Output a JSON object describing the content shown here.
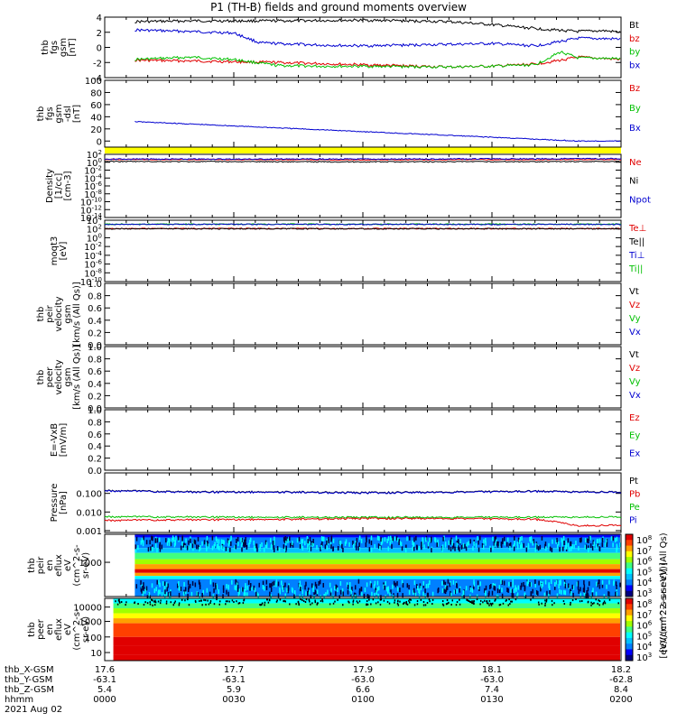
{
  "title": "P1 (TH-B) fields and ground moments overview",
  "chart_data": [
    {
      "id": "fgs_gsm",
      "type": "line",
      "ylabel_lines": [
        "thb",
        "fgs",
        "gsm",
        "[nT]"
      ],
      "ylim": [
        -4,
        4
      ],
      "yticks": [
        "4",
        "2",
        "0",
        "-2",
        "-4"
      ],
      "legend": [
        {
          "label": "Bt",
          "color": "#000000"
        },
        {
          "label": "bz",
          "color": "#e00000"
        },
        {
          "label": "by",
          "color": "#00c000"
        },
        {
          "label": "bx",
          "color": "#0000d0"
        }
      ],
      "series": [
        {
          "name": "Bt",
          "color": "#000000",
          "x": [
            17.635,
            17.7,
            17.8,
            17.9,
            18.0,
            18.05,
            18.1,
            18.15,
            18.18,
            18.2
          ],
          "values": [
            3.4,
            3.5,
            3.5,
            3.6,
            3.4,
            3.0,
            2.5,
            2.1,
            2.2,
            2.0
          ]
        },
        {
          "name": "bz",
          "color": "#e00000",
          "x": [
            17.635,
            17.7,
            17.8,
            17.9,
            18.0,
            18.05,
            18.1,
            18.13,
            18.15,
            18.2
          ],
          "values": [
            -1.7,
            -1.8,
            -2.0,
            -2.3,
            -2.6,
            -2.5,
            -2.2,
            -1.7,
            -1.3,
            -1.6
          ]
        },
        {
          "name": "by",
          "color": "#00c000",
          "x": [
            17.635,
            17.7,
            17.75,
            17.8,
            17.85,
            17.9,
            18.0,
            18.05,
            18.1,
            18.13,
            18.15,
            18.2
          ],
          "values": [
            -1.6,
            -1.3,
            -1.6,
            -2.4,
            -2.5,
            -2.5,
            -2.6,
            -2.5,
            -2.3,
            -0.6,
            -1.4,
            -1.5
          ]
        },
        {
          "name": "bx",
          "color": "#0000d0",
          "x": [
            17.635,
            17.7,
            17.75,
            17.78,
            17.8,
            17.85,
            17.9,
            17.95,
            18.0,
            18.05,
            18.1,
            18.15,
            18.2
          ],
          "values": [
            2.3,
            2.1,
            1.9,
            0.6,
            0.5,
            0.3,
            0.2,
            0.3,
            0.4,
            0.5,
            0.2,
            1.2,
            1.1
          ]
        }
      ]
    },
    {
      "id": "fgs_gsm_dsl",
      "type": "line",
      "ylabel_lines": [
        "thb",
        "fgs",
        "gsm",
        "-dsl",
        "[nT]"
      ],
      "ylim": [
        -10,
        100
      ],
      "yticks": [
        "100",
        "80",
        "60",
        "40",
        "20",
        "0"
      ],
      "legend": [
        {
          "label": "Bz",
          "color": "#e00000"
        },
        {
          "label": "By",
          "color": "#00c000"
        },
        {
          "label": "Bx",
          "color": "#0000d0"
        }
      ],
      "series": [
        {
          "name": "Bx",
          "color": "#0000d0",
          "x": [
            17.635,
            18.15,
            18.2
          ],
          "values": [
            32,
            0,
            0
          ]
        }
      ]
    },
    {
      "id": "density",
      "type": "line",
      "log": true,
      "ylabel_lines": [
        "Density",
        "[1/cc]",
        "[cm-3]"
      ],
      "ylim_exp": [
        -14,
        2
      ],
      "yticks": [
        "10^2",
        "10^0",
        "10^-2",
        "10^-4",
        "10^-6",
        "10^-8",
        "10^-10",
        "10^-12",
        "10^-14"
      ],
      "legend": [
        {
          "label": "Ne",
          "color": "#e00000"
        },
        {
          "label": "Ni",
          "color": "#000000"
        },
        {
          "label": "Npot",
          "color": "#0000d0"
        }
      ],
      "series": [
        {
          "name": "Ne",
          "color": "#e00000",
          "x": [
            17.6,
            17.9,
            18.2
          ],
          "exp": [
            0.7,
            0.6,
            0.7
          ]
        },
        {
          "name": "Npot",
          "color": "#0000d0",
          "x": [
            17.6,
            17.9,
            18.2
          ],
          "exp": [
            0.8,
            0.8,
            0.9
          ]
        },
        {
          "name": "Ni",
          "color": "#000000",
          "x": [
            17.6,
            17.9,
            18.2
          ],
          "exp": [
            0.2,
            0.1,
            0.2
          ]
        }
      ]
    },
    {
      "id": "temperature",
      "type": "line",
      "log": true,
      "ylabel_lines": [
        "moqt3",
        "[eV]"
      ],
      "ylim_exp": [
        -10,
        4
      ],
      "yticks": [
        "10^4",
        "10^2",
        "10^0",
        "10^-2",
        "10^-4",
        "10^-6",
        "10^-8",
        "10^-10"
      ],
      "legend": [
        {
          "label": "Te⊥",
          "color": "#e00000"
        },
        {
          "label": "Te||",
          "color": "#000000"
        },
        {
          "label": "Ti⊥",
          "color": "#0000d0"
        },
        {
          "label": "Ti||",
          "color": "#00c000"
        }
      ],
      "series": [
        {
          "name": "Ti||",
          "color": "#00c000",
          "x": [
            17.6,
            18.2
          ],
          "exp": [
            3.1,
            3.1
          ]
        },
        {
          "name": "Ti⊥",
          "color": "#0000d0",
          "x": [
            17.6,
            18.2
          ],
          "exp": [
            3.05,
            3.05
          ]
        },
        {
          "name": "Te⊥",
          "color": "#e00000",
          "x": [
            17.6,
            18.2
          ],
          "exp": [
            2.1,
            2.1
          ]
        },
        {
          "name": "Te||",
          "color": "#000000",
          "x": [
            17.6,
            18.2
          ],
          "exp": [
            2.05,
            2.05
          ]
        }
      ]
    },
    {
      "id": "peir_velocity",
      "type": "line",
      "ylabel_lines": [
        "thb",
        "peir",
        "velocity",
        "gsm",
        "[km/s (All Qs)]"
      ],
      "ylim": [
        0,
        1
      ],
      "yticks": [
        "1.0",
        "0.8",
        "0.6",
        "0.4",
        "0.2",
        "0.0"
      ],
      "legend": [
        {
          "label": "Vt",
          "color": "#000000"
        },
        {
          "label": "Vz",
          "color": "#e00000"
        },
        {
          "label": "Vy",
          "color": "#00c000"
        },
        {
          "label": "Vx",
          "color": "#0000d0"
        }
      ],
      "series": []
    },
    {
      "id": "peer_velocity",
      "type": "line",
      "ylabel_lines": [
        "thb",
        "peer",
        "velocity",
        "gsm",
        "[km/s (All Qs)]"
      ],
      "ylim": [
        0,
        1
      ],
      "yticks": [
        "1.0",
        "0.8",
        "0.6",
        "0.4",
        "0.2",
        "0.0"
      ],
      "legend": [
        {
          "label": "Vt",
          "color": "#000000"
        },
        {
          "label": "Vz",
          "color": "#e00000"
        },
        {
          "label": "Vy",
          "color": "#00c000"
        },
        {
          "label": "Vx",
          "color": "#0000d0"
        }
      ],
      "series": []
    },
    {
      "id": "efield",
      "type": "line",
      "ylabel_lines": [
        "E=-VxB",
        "[mV/m]"
      ],
      "ylim": [
        0,
        1
      ],
      "yticks": [
        "1.0",
        "0.8",
        "0.6",
        "0.4",
        "0.2",
        "0.0"
      ],
      "legend": [
        {
          "label": "Ez",
          "color": "#e00000"
        },
        {
          "label": "Ey",
          "color": "#00c000"
        },
        {
          "label": "Ex",
          "color": "#0000d0"
        }
      ],
      "series": []
    },
    {
      "id": "pressure",
      "type": "line",
      "log": true,
      "ylabel_lines": [
        "Pressure",
        "[nPa]"
      ],
      "ylim_exp": [
        -3.1,
        0.1
      ],
      "yticks": [
        "0.100",
        "0.010",
        "0.001"
      ],
      "ytick_exps": [
        -1,
        -2,
        -3
      ],
      "legend": [
        {
          "label": "Pt",
          "color": "#000000"
        },
        {
          "label": "Pb",
          "color": "#e00000"
        },
        {
          "label": "Pe",
          "color": "#00c000"
        },
        {
          "label": "Pi",
          "color": "#0000d0"
        }
      ],
      "series": [
        {
          "name": "Pt",
          "color": "#000000",
          "x": [
            17.6,
            17.7,
            17.8,
            17.9,
            18.0,
            18.1,
            18.2
          ],
          "values": [
            0.14,
            0.12,
            0.12,
            0.11,
            0.12,
            0.13,
            0.12
          ]
        },
        {
          "name": "Pi",
          "color": "#0000d0",
          "x": [
            17.6,
            17.7,
            17.8,
            17.9,
            18.0,
            18.1,
            18.2
          ],
          "values": [
            0.135,
            0.115,
            0.115,
            0.105,
            0.115,
            0.125,
            0.115
          ]
        },
        {
          "name": "Pe",
          "color": "#00c000",
          "x": [
            17.6,
            17.8,
            18.0,
            18.1,
            18.2
          ],
          "values": [
            0.0055,
            0.0052,
            0.0052,
            0.0052,
            0.0055
          ]
        },
        {
          "name": "Pb",
          "color": "#e00000",
          "x": [
            17.6,
            17.7,
            17.8,
            17.9,
            18.0,
            18.1,
            18.15,
            18.2
          ],
          "values": [
            0.0035,
            0.0038,
            0.004,
            0.0045,
            0.0045,
            0.004,
            0.0018,
            0.002
          ]
        }
      ]
    },
    {
      "id": "peir_spectrogram",
      "type": "heatmap",
      "ylabel_lines": [
        "thb",
        "peir",
        "en",
        "eflux",
        "eV",
        "(cm^2-s-",
        "sr-eV)"
      ],
      "yticks": [
        "1000"
      ]
    },
    {
      "id": "peer_spectrogram",
      "type": "heatmap",
      "ylabel_lines": [
        "thb",
        "peer",
        "en",
        "eflux",
        "eV",
        "(cm^2-s-",
        "sr-eV)"
      ],
      "yticks": [
        "10000",
        "1000",
        "100",
        "10"
      ]
    }
  ],
  "colorbar": {
    "ticks": [
      "10^8",
      "10^7",
      "10^6",
      "10^5",
      "10^4",
      "10^3"
    ],
    "label": "[eV/(cm^2-s-sr-eV)] (All Qs)",
    "label2": "[eV/(cm^2-s-sr-eV)]"
  },
  "xaxis": {
    "rows": [
      {
        "label": "thb_X-GSM",
        "values": [
          "17.6",
          "17.7",
          "17.9",
          "18.1",
          "18.2"
        ]
      },
      {
        "label": "thb_Y-GSM",
        "values": [
          "-63.1",
          "-63.1",
          "-63.0",
          "-63.0",
          "-62.8"
        ]
      },
      {
        "label": "thb_Z-GSM",
        "values": [
          "5.4",
          "5.9",
          "6.6",
          "7.4",
          "8.4"
        ]
      },
      {
        "label": "hhmm",
        "values": [
          "0000",
          "0030",
          "0100",
          "0130",
          "0200"
        ]
      }
    ],
    "date": "2021 Aug 02"
  }
}
